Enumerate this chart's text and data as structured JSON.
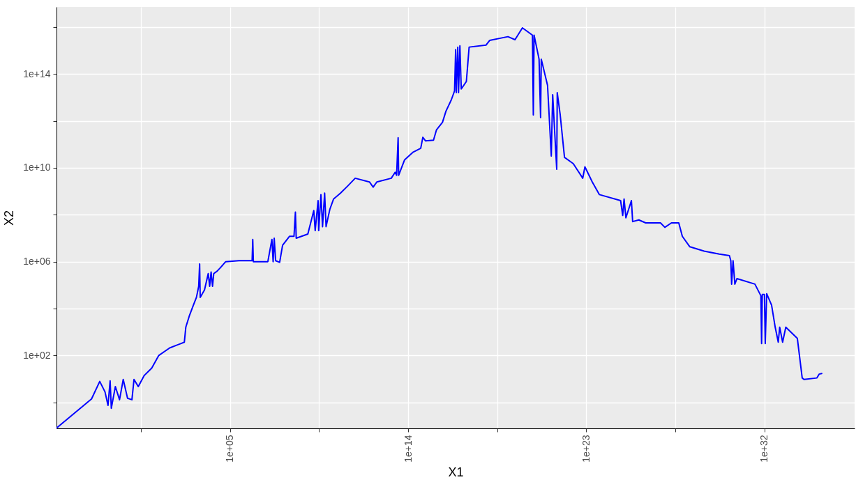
{
  "chart_data": {
    "type": "line",
    "xlabel": "X1",
    "ylabel": "X2",
    "log": "xy",
    "grid": true,
    "xlim": [
      0.00017,
      3.6e+36
    ],
    "ylim": [
      0.078,
      7.2e+16
    ],
    "xticks": [
      {
        "value": 3.16,
        "label": null
      },
      {
        "value": 100000.0,
        "label": "1e+05"
      },
      {
        "value": 3160000000.0,
        "label": null
      },
      {
        "value": 100000000000000.0,
        "label": "1e+14"
      },
      {
        "value": 3.16e+18,
        "label": null
      },
      {
        "value": 1e+23,
        "label": "1e+23"
      },
      {
        "value": 3.16e+27,
        "label": null
      },
      {
        "value": 1e+32,
        "label": "1e+32"
      }
    ],
    "yticks": [
      {
        "value": 1,
        "label": null
      },
      {
        "value": 100,
        "label": "1e+02"
      },
      {
        "value": 10000.0,
        "label": null
      },
      {
        "value": 1000000.0,
        "label": "1e+06"
      },
      {
        "value": 100000000.0,
        "label": null
      },
      {
        "value": 10000000000.0,
        "label": "1e+10"
      },
      {
        "value": 1000000000000.0,
        "label": null
      },
      {
        "value": 100000000000000.0,
        "label": "1e+14"
      },
      {
        "value": 1e+16,
        "label": null
      }
    ],
    "x": [
      0.00018,
      0.01,
      0.026,
      0.048,
      0.068,
      0.087,
      0.1,
      0.16,
      0.26,
      0.4,
      0.66,
      1.1,
      1.4,
      2.3,
      4.6,
      11,
      25,
      89,
      320,
      490,
      580,
      870,
      1400,
      2000,
      2600,
      2900,
      3100,
      5100,
      7900,
      9300,
      11000,
      13000,
      15000,
      22000,
      33000,
      60000,
      280000.0,
      1300000.0,
      1400000.0,
      1500000.0,
      8100000.0,
      13000000.0,
      15000000.0,
      17000000.0,
      20000000.0,
      32000000.0,
      45000000.0,
      100000000.0,
      170000000.0,
      200000000.0,
      220000000.0,
      850000000.0,
      1700000000.0,
      2000000000.0,
      2800000000.0,
      3000000000.0,
      3900000000.0,
      4700000000.0,
      6000000000.0,
      7100000000.0,
      11000000000.0,
      17000000000.0,
      38000000000.0,
      89000000000.0,
      210000000000.0,
      1100000000000.0,
      1700000000000.0,
      2600000000000.0,
      14000000000000.0,
      22000000000000.0,
      26000000000000.0,
      31000000000000.0,
      33000000000000.0,
      66000000000000.0,
      180000000000000.0,
      430000000000000.0,
      550000000000000.0,
      760000000000000.0,
      1900000000000000.0,
      2700000000000000.0,
      5400000000000000.0,
      8100000000000000.0,
      1.5e+16,
      2.2e+16,
      2.5e+16,
      2.7e+16,
      3.2e+16,
      3.5e+16,
      4.1e+16,
      4.8e+16,
      8.7e+16,
      1.2e+17,
      8.5e+17,
      1.3e+18,
      1.1e+19,
      2.5e+19,
      5.9e+19,
      1.9e+20,
      2.1e+20,
      2.3e+20,
      4.1e+20,
      4.9e+20,
      5.3e+20,
      1.1e+21,
      1.7e+21,
      2e+21,
      3.2e+21,
      3.4e+21,
      4.8e+21,
      7.9e+21,
      2.2e+22,
      6.6e+22,
      8.5e+22,
      2e+23,
      4.6e+23,
      5.4e+24,
      6.9e+24,
      8.1e+24,
      1e+25,
      1.9e+25,
      2.2e+25,
      4.5e+25,
      1e+26,
      5.6e+26,
      9.3e+26,
      2e+27,
      4.7e+27,
      7.1e+27,
      1.7e+28,
      8.9e+28,
      5.2e+29,
      1.7e+30,
      2e+30,
      2.2e+30,
      2.6e+30,
      3.2e+30,
      4.1e+30,
      3.3e+31,
      6.6e+31,
      7.2e+31,
      7.8e+31,
      1e+32,
      1.1e+32,
      1.3e+32,
      2.3e+32,
      3.5e+32,
      5e+32,
      5.9e+32,
      8.3e+32,
      1.2e+33,
      3.5e+33,
      4.6e+33,
      8.1e+33,
      1e+34,
      4.5e+34,
      5.8e+34,
      7.9e+34
    ],
    "series": [
      {
        "color": "#0000ff",
        "values": [
          0.083,
          1.4,
          7.8,
          2.8,
          0.74,
          8.3,
          0.56,
          4.7,
          1.3,
          9.5,
          1.5,
          1.3,
          9.5,
          4.7,
          14,
          29,
          100,
          210,
          320,
          370,
          1600,
          4800,
          14000,
          30000,
          89000,
          800000.0,
          30000,
          62000,
          310000.0,
          89000,
          360000.0,
          89000,
          310000.0,
          390000.0,
          560000.0,
          1000000.0,
          1100000.0,
          1100000.0,
          8900000.0,
          1000000.0,
          1000000.0,
          8900000.0,
          1000000.0,
          10000000.0,
          1100000.0,
          930000.0,
          5000000.0,
          12000000.0,
          12000000.0,
          130000000.0,
          10000000.0,
          15000000.0,
          150000000.0,
          21000000.0,
          400000000.0,
          21000000.0,
          720000000.0,
          31000000.0,
          830000000.0,
          31000000.0,
          170000000.0,
          470000000.0,
          830000000.0,
          1700000000.0,
          3600000000.0,
          2500000000.0,
          1500000000.0,
          2500000000.0,
          3600000000.0,
          6500000000.0,
          4800000000.0,
          190000000000.0,
          4800000000.0,
          22000000000.0,
          47000000000.0,
          68000000000.0,
          200000000000.0,
          140000000000.0,
          150000000000.0,
          420000000000.0,
          870000000000.0,
          2600000000000.0,
          7800000000000.0,
          19000000000000.0,
          1100000000000000.0,
          16000000000000.0,
          1400000000000000.0,
          16000000000000.0,
          1600000000000000.0,
          23000000000000.0,
          48000000000000.0,
          1400000000000000.0,
          1700000000000000.0,
          2700000000000000.0,
          3900000000000000.0,
          2900000000000000.0,
          9300000000000000.0,
          4500000000000000.0,
          1800000000000.0,
          4500000000000000.0,
          430000000000000.0,
          1400000000000.0,
          430000000000000.0,
          33000000000000.0,
          32000000000.0,
          13000000000000.0,
          8700000000.0,
          16000000000000.0,
          1800000000000.0,
          28000000000.0,
          15000000000.0,
          3600000000.0,
          11000000000.0,
          2500000000.0,
          720000000.0,
          400000000.0,
          93000000.0,
          470000000.0,
          74000000.0,
          400000000.0,
          51000000.0,
          60000000.0,
          45000000.0,
          45000000.0,
          29000000.0,
          45000000.0,
          45000000.0,
          12000000.0,
          4300000.0,
          2800000.0,
          2100000.0,
          1800000.0,
          1100000.0,
          110000.0,
          1100000.0,
          110000.0,
          190000.0,
          110000.0,
          35000,
          320,
          40000,
          40000,
          320,
          43000,
          14000,
          1600,
          370,
          1600,
          370,
          1600,
          670,
          540,
          11,
          9.5,
          11,
          16,
          17
        ]
      }
    ]
  }
}
